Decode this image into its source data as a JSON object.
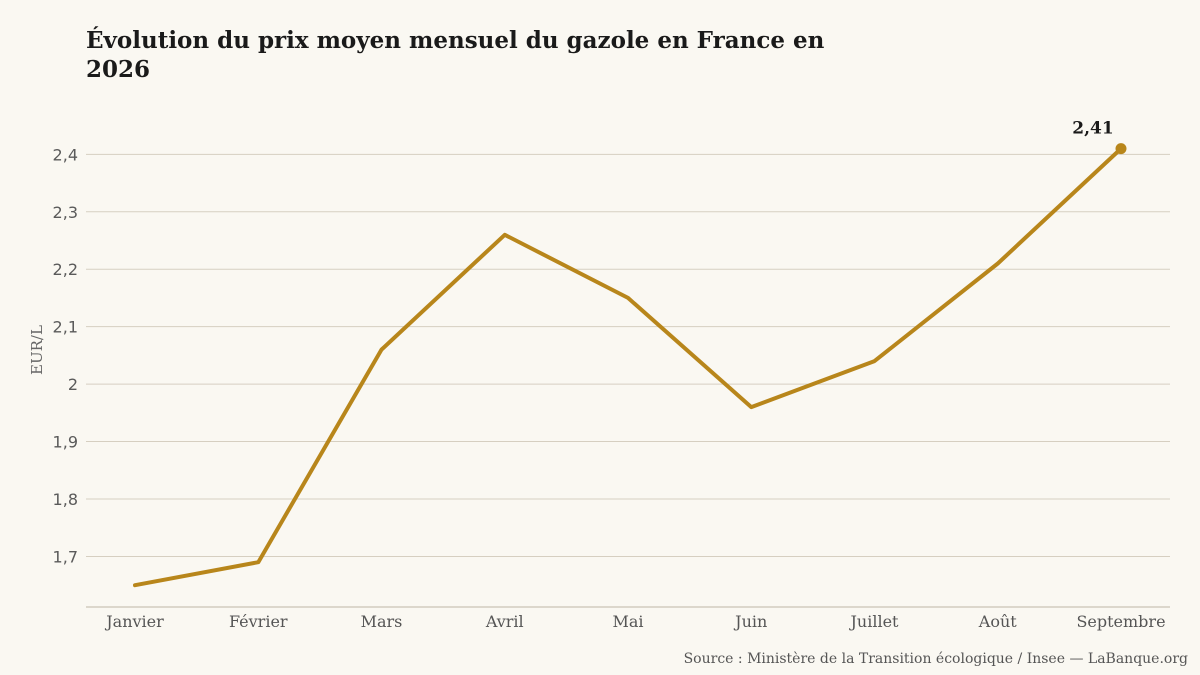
{
  "chart_data": {
    "type": "line",
    "title": "Évolution du prix moyen mensuel du gazole en France en 2026",
    "xlabel": "",
    "ylabel": "EUR/L",
    "categories": [
      "Janvier",
      "Février",
      "Mars",
      "Avril",
      "Mai",
      "Juin",
      "Juillet",
      "Août",
      "Septembre"
    ],
    "series": [
      {
        "values": [
          1.65,
          1.69,
          2.06,
          2.26,
          2.15,
          1.96,
          2.04,
          2.21,
          2.41
        ]
      }
    ],
    "yticks": [
      {
        "value": 1.7,
        "label": "1,7"
      },
      {
        "value": 1.8,
        "label": "1,8"
      },
      {
        "value": 1.9,
        "label": "1,9"
      },
      {
        "value": 2.0,
        "label": "2"
      },
      {
        "value": 2.1,
        "label": "2,1"
      },
      {
        "value": 2.2,
        "label": "2,2"
      },
      {
        "value": 2.3,
        "label": "2,3"
      },
      {
        "value": 2.4,
        "label": "2,4"
      }
    ],
    "ylim": [
      1.612,
      2.512
    ],
    "grid": true,
    "end_label": "2,41",
    "line_color": "#b8861b",
    "source": "Source : Ministère de la Transition écologique / Insee — LaBanque.org"
  }
}
